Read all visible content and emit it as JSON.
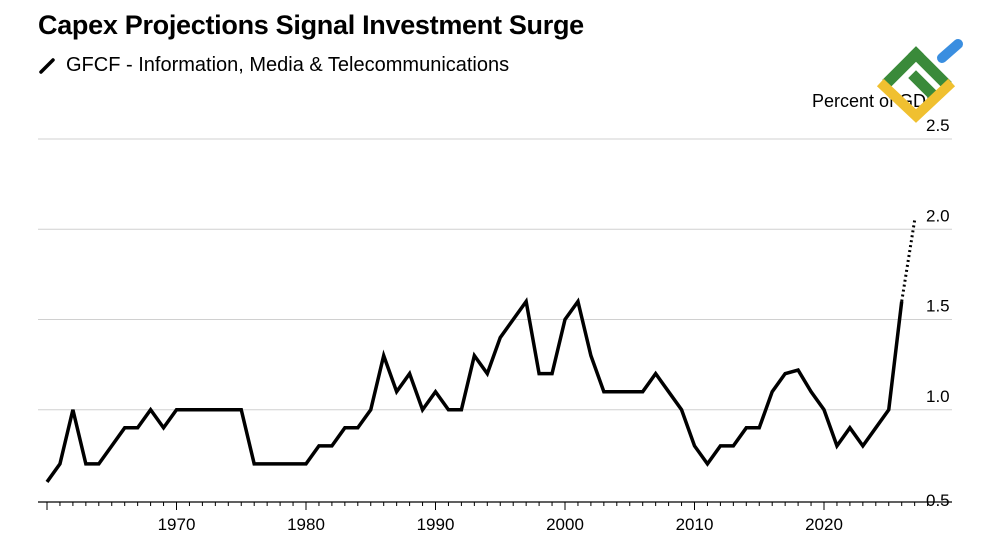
{
  "colors": {
    "line": "#000000",
    "grid": "#d0d0d0",
    "logo_green": "#3a8a3a",
    "logo_blue": "#3a8ee0",
    "logo_yellow": "#f0c030"
  },
  "logo": {
    "name": "brand-logo-icon"
  },
  "chart_data": {
    "type": "line",
    "title": "Capex Projections Signal Investment Surge",
    "unit_label": "Percent of GDP",
    "xlabel": "",
    "ylabel": "",
    "ylim": [
      0.5,
      2.5
    ],
    "xlim": [
      1959.5,
      2028.5
    ],
    "y_ticks": [
      "0.5",
      "1.0",
      "1.5",
      "2.0",
      "2.5"
    ],
    "x_ticks": [
      "1970",
      "1980",
      "1990",
      "2000",
      "2010",
      "2020"
    ],
    "grid": true,
    "legend_position": "top-left",
    "series": [
      {
        "name": "GFCF - Information, Media & Telecommunications",
        "style": "solid",
        "x": [
          1960,
          1961,
          1962,
          1963,
          1964,
          1965,
          1966,
          1967,
          1968,
          1969,
          1970,
          1971,
          1972,
          1973,
          1974,
          1975,
          1976,
          1977,
          1978,
          1979,
          1980,
          1981,
          1982,
          1983,
          1984,
          1985,
          1986,
          1987,
          1988,
          1989,
          1990,
          1991,
          1992,
          1993,
          1994,
          1995,
          1996,
          1997,
          1998,
          1999,
          2000,
          2001,
          2002,
          2003,
          2004,
          2005,
          2006,
          2007,
          2008,
          2009,
          2010,
          2011,
          2012,
          2013,
          2014,
          2015,
          2016,
          2017,
          2018,
          2019,
          2020,
          2021,
          2022,
          2023,
          2024,
          2025,
          2026
        ],
        "values": [
          0.6,
          0.7,
          1.0,
          0.7,
          0.7,
          0.8,
          0.9,
          0.9,
          1.0,
          0.9,
          1.0,
          1.0,
          1.0,
          1.0,
          1.0,
          1.0,
          0.7,
          0.7,
          0.7,
          0.7,
          0.7,
          0.8,
          0.8,
          0.9,
          0.9,
          1.0,
          1.3,
          1.1,
          1.2,
          1.0,
          1.1,
          1.0,
          1.0,
          1.3,
          1.2,
          1.4,
          1.5,
          1.6,
          1.2,
          1.2,
          1.5,
          1.6,
          1.3,
          1.1,
          1.1,
          1.1,
          1.1,
          1.2,
          1.1,
          1.0,
          0.8,
          0.7,
          0.8,
          0.8,
          0.9,
          0.9,
          1.1,
          1.2,
          1.22,
          1.1,
          1.0,
          0.8,
          0.9,
          0.8,
          0.9,
          1.0,
          1.6
        ]
      },
      {
        "name": "",
        "style": "dotted",
        "x": [
          2026,
          2027
        ],
        "values": [
          1.6,
          2.05
        ]
      }
    ]
  }
}
